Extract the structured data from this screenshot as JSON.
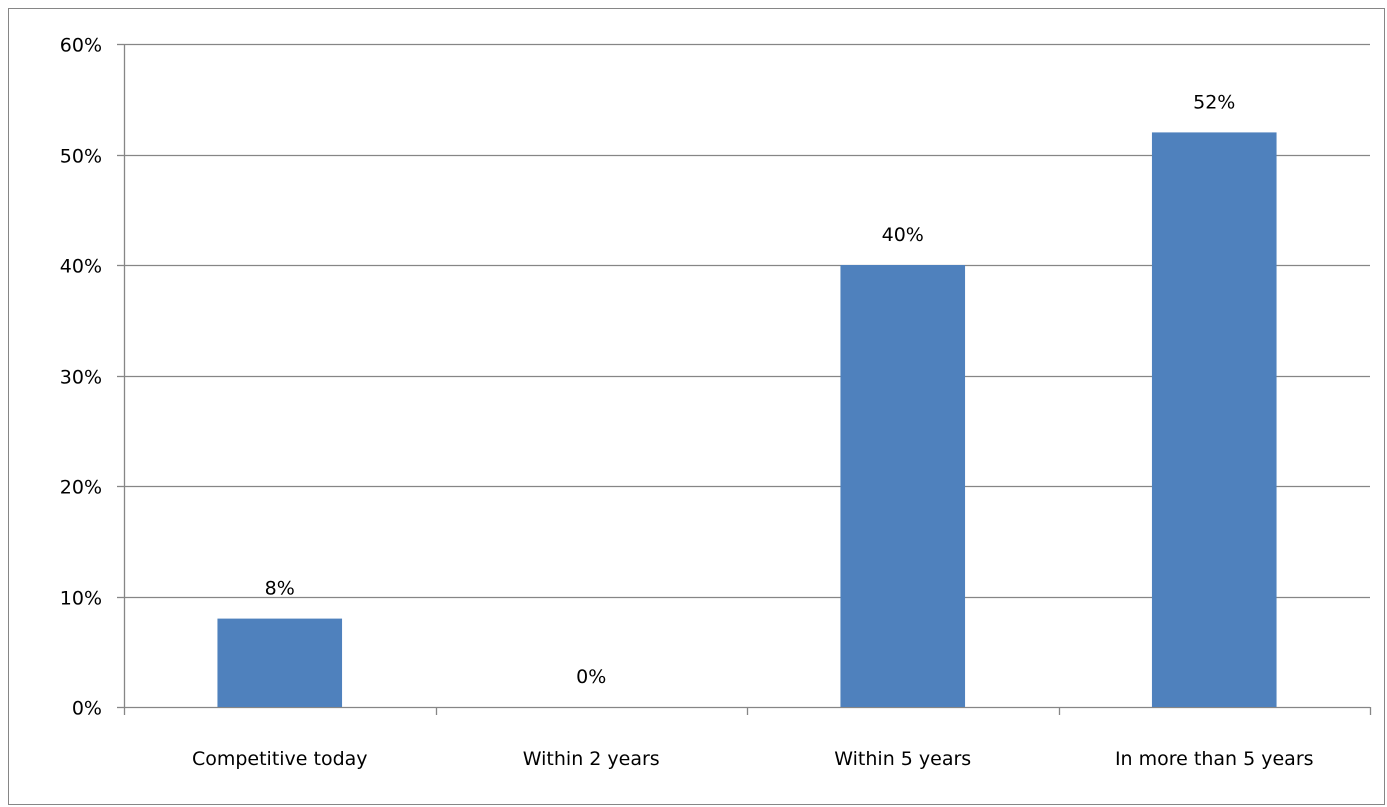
{
  "chart_data": {
    "type": "bar",
    "categories": [
      "Competitive today",
      "Within 2 years",
      "Within 5 years",
      "In more than 5 years"
    ],
    "values": [
      8,
      0,
      40,
      52
    ],
    "data_labels": [
      "8%",
      "0%",
      "40%",
      "52%"
    ],
    "title": "",
    "xlabel": "",
    "ylabel": "",
    "ylim": [
      0,
      60
    ],
    "yticks": [
      0,
      10,
      20,
      30,
      40,
      50,
      60
    ],
    "ytick_labels": [
      "0%",
      "10%",
      "20%",
      "30%",
      "40%",
      "50%",
      "60%"
    ],
    "grid": true,
    "legend": "none",
    "bar_color": "#4F81BD",
    "grid_color": "#868686"
  }
}
